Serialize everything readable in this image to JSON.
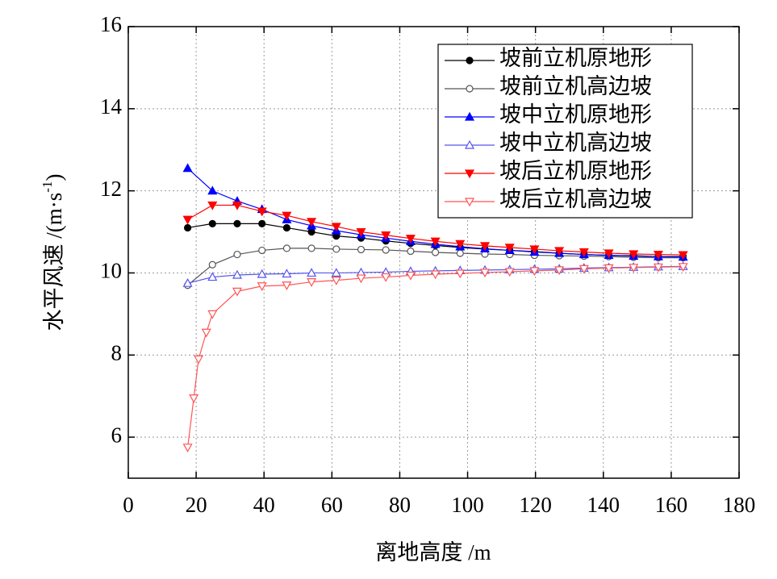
{
  "chart_data": {
    "type": "line",
    "x_label": "离地高度 /m",
    "y_label": {
      "text": "水平风速 /(m·s",
      "sup": "-1",
      "end": ")"
    },
    "xlim": [
      0,
      180
    ],
    "xticks": [
      0,
      20,
      40,
      60,
      80,
      100,
      120,
      140,
      160,
      180
    ],
    "ylim": [
      5,
      16
    ],
    "yticks": [
      6,
      8,
      10,
      12,
      14,
      16
    ],
    "grid": true,
    "legend": "upper right",
    "series": [
      {
        "name": "坡前立机原地形",
        "color": "#000000",
        "marker": "circle",
        "x": [
          17.5,
          24.8,
          32.1,
          39.4,
          46.7,
          54,
          61.3,
          68.6,
          75.9,
          83.2,
          90.5,
          97.8,
          105.1,
          112.4,
          119.7,
          127,
          134.3,
          141.6,
          148.9,
          156.2,
          163.5
        ],
        "values": [
          11.1,
          11.2,
          11.2,
          11.2,
          11.1,
          11.0,
          10.9,
          10.85,
          10.78,
          10.72,
          10.67,
          10.62,
          10.58,
          10.55,
          10.52,
          10.48,
          10.45,
          10.43,
          10.42,
          10.4,
          10.4
        ]
      },
      {
        "name": "坡前立机高边坡",
        "color": "#555555",
        "marker": "circle-open",
        "x": [
          17.5,
          24.8,
          32.1,
          39.4,
          46.7,
          54,
          61.3,
          68.6,
          75.9,
          83.2,
          90.5,
          97.8,
          105.1,
          112.4,
          119.7,
          127,
          134.3,
          141.6,
          148.9,
          156.2,
          163.5
        ],
        "values": [
          9.7,
          10.2,
          10.45,
          10.55,
          10.6,
          10.6,
          10.58,
          10.57,
          10.56,
          10.53,
          10.5,
          10.48,
          10.46,
          10.45,
          10.43,
          10.42,
          10.41,
          10.4,
          10.38,
          10.37,
          10.37
        ]
      },
      {
        "name": "坡中立机原地形",
        "color": "#0000ff",
        "marker": "triangle",
        "x": [
          17.5,
          24.8,
          32.1,
          39.4,
          46.7,
          54,
          61.3,
          68.6,
          75.9,
          83.2,
          90.5,
          97.8,
          105.1,
          112.4,
          119.7,
          127,
          134.3,
          141.6,
          148.9,
          156.2,
          163.5
        ],
        "values": [
          12.55,
          12.0,
          11.75,
          11.55,
          11.3,
          11.15,
          11.03,
          10.93,
          10.85,
          10.77,
          10.7,
          10.64,
          10.59,
          10.55,
          10.51,
          10.48,
          10.45,
          10.43,
          10.41,
          10.4,
          10.39
        ]
      },
      {
        "name": "坡中立机高边坡",
        "color": "#5555ee",
        "marker": "triangle-open",
        "x": [
          17.5,
          24.8,
          32.1,
          39.4,
          46.7,
          54,
          61.3,
          68.6,
          75.9,
          83.2,
          90.5,
          97.8,
          105.1,
          112.4,
          119.7,
          127,
          134.3,
          141.6,
          148.9,
          156.2,
          163.5
        ],
        "values": [
          9.75,
          9.9,
          9.95,
          9.97,
          9.98,
          10.0,
          10.0,
          10.01,
          10.02,
          10.04,
          10.05,
          10.06,
          10.07,
          10.08,
          10.09,
          10.1,
          10.12,
          10.13,
          10.14,
          10.15,
          10.16
        ]
      },
      {
        "name": "坡后立机原地形",
        "color": "#ff0000",
        "marker": "triangle-down",
        "x": [
          17.5,
          24.8,
          32.1,
          39.4,
          46.7,
          54,
          61.3,
          68.6,
          75.9,
          83.2,
          90.5,
          97.8,
          105.1,
          112.4,
          119.7,
          127,
          134.3,
          141.6,
          148.9,
          156.2,
          163.5
        ],
        "values": [
          11.3,
          11.65,
          11.65,
          11.5,
          11.4,
          11.25,
          11.13,
          11.0,
          10.92,
          10.84,
          10.77,
          10.71,
          10.66,
          10.62,
          10.58,
          10.54,
          10.51,
          10.48,
          10.46,
          10.45,
          10.44
        ]
      },
      {
        "name": "坡后立机高边坡",
        "color": "#ff5555",
        "marker": "triangle-down-open",
        "x": [
          17.5,
          19.3,
          20.7,
          23,
          24.8,
          32.1,
          39.4,
          46.7,
          54,
          61.3,
          68.6,
          75.9,
          83.2,
          90.5,
          97.8,
          105.1,
          112.4,
          119.7,
          127,
          134.3,
          141.6,
          148.9,
          156.2,
          163.5
        ],
        "values": [
          5.75,
          6.95,
          7.9,
          8.55,
          9.0,
          9.55,
          9.68,
          9.7,
          9.78,
          9.82,
          9.87,
          9.9,
          9.94,
          9.97,
          9.99,
          10.01,
          10.03,
          10.05,
          10.07,
          10.1,
          10.12,
          10.13,
          10.14,
          10.15
        ]
      }
    ]
  }
}
